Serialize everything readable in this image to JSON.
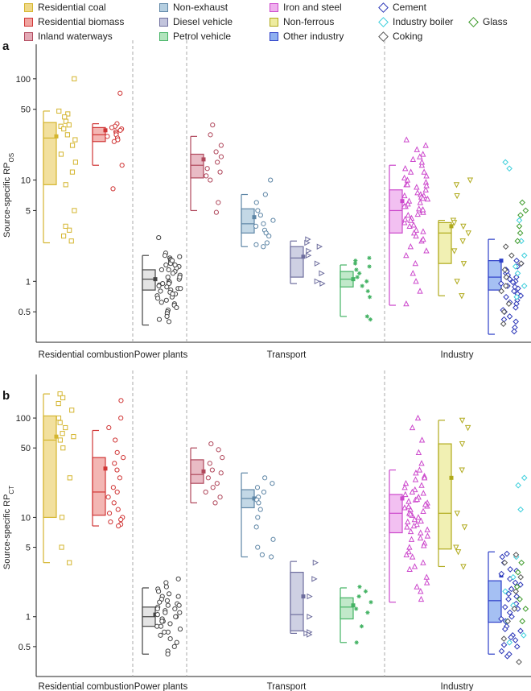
{
  "legend": [
    {
      "label": "Residential coal",
      "color": "#d4b52e",
      "fill": "#efd886",
      "shape": "square"
    },
    {
      "label": "Residential biomass",
      "color": "#d03535",
      "fill": "#f0a4a0",
      "shape": "square"
    },
    {
      "label": "Inland waterways",
      "color": "#b0485c",
      "fill": "#e3aab6",
      "shape": "square"
    },
    {
      "label": "Non-exhaust",
      "color": "#5e86a6",
      "fill": "#b4cee0",
      "shape": "square"
    },
    {
      "label": "Diesel vehicle",
      "color": "#6e6e9e",
      "fill": "#c2c4dc",
      "shape": "square"
    },
    {
      "label": "Petrol vehicle",
      "color": "#44b364",
      "fill": "#b2e4bd",
      "shape": "square"
    },
    {
      "label": "Iron and steel",
      "color": "#cc48cc",
      "fill": "#efb0ee",
      "shape": "square"
    },
    {
      "label": "Non-ferrous",
      "color": "#b0aa1c",
      "fill": "#eeeca0",
      "shape": "square"
    },
    {
      "label": "Other industry",
      "color": "#2d3fc8",
      "fill": "#8fb0f0",
      "shape": "square"
    },
    {
      "label": "Cement",
      "color": "#2b36b8",
      "shape": "diamond"
    },
    {
      "label": "Industry boiler",
      "color": "#3ccfdc",
      "shape": "diamond"
    },
    {
      "label": "Coking",
      "color": "#555555",
      "shape": "diamond"
    },
    {
      "label": "Glass",
      "color": "#3c9a2a",
      "shape": "diamond"
    }
  ],
  "chart_data": [
    {
      "panel": "a",
      "type": "box",
      "ylabel": "Source-specific RP",
      "ylabel_sub": "OS",
      "yscale": "log",
      "ylim": [
        0.25,
        200
      ],
      "yticks": [
        0.5,
        1,
        5,
        10,
        50,
        100
      ],
      "groups": [
        "Residential combustion",
        "Power plants",
        "Transport",
        "Industry"
      ],
      "series": [
        {
          "name": "Residential coal",
          "box": [
            9,
            26,
            37
          ],
          "whisker": [
            2.4,
            48
          ],
          "mean": 27,
          "points": [
            100,
            48,
            45,
            42,
            38,
            35,
            34,
            32,
            28,
            25,
            22,
            18,
            15,
            12,
            9,
            5,
            3.5,
            3.2,
            2.8,
            2.5
          ]
        },
        {
          "name": "Residential biomass",
          "box": [
            24,
            28,
            33
          ],
          "whisker": [
            14,
            36
          ],
          "mean": 31,
          "points": [
            72,
            36,
            34,
            33,
            32,
            31,
            30,
            29,
            28,
            27,
            26,
            25,
            24,
            14,
            8.2
          ]
        },
        {
          "name": "Power plants",
          "box": [
            0.82,
            1.05,
            1.3
          ],
          "whisker": [
            0.37,
            1.8
          ],
          "mean": 1.05,
          "points": [
            2.7,
            1.9,
            1.8,
            1.75,
            1.7,
            1.65,
            1.6,
            1.55,
            1.5,
            1.45,
            1.4,
            1.35,
            1.3,
            1.25,
            1.2,
            1.15,
            1.1,
            1.05,
            1.0,
            0.98,
            0.95,
            0.92,
            0.9,
            0.88,
            0.85,
            0.82,
            0.8,
            0.78,
            0.75,
            0.72,
            0.7,
            0.68,
            0.65,
            0.62,
            0.6,
            0.58,
            0.55,
            0.52,
            0.5,
            0.48,
            0.45,
            0.42,
            0.4,
            1.3,
            1.1,
            0.95,
            0.85,
            0.75,
            1.45,
            1.6
          ]
        },
        {
          "name": "Inland waterways",
          "box": [
            10.5,
            14,
            18
          ],
          "whisker": [
            5,
            27
          ],
          "mean": 16,
          "points": [
            35,
            28,
            22,
            19,
            17,
            15,
            13,
            12,
            11,
            10,
            6,
            4.8
          ]
        },
        {
          "name": "Non-exhaust",
          "box": [
            3.0,
            3.7,
            5.2
          ],
          "whisker": [
            2.2,
            7.2
          ],
          "mean": 4.3,
          "points": [
            10,
            7.2,
            6,
            5,
            4.5,
            4,
            3.7,
            3.5,
            3.2,
            3,
            2.8,
            2.4,
            2.3,
            2.2
          ]
        },
        {
          "name": "Diesel vehicle",
          "box": [
            1.1,
            1.7,
            2.2
          ],
          "whisker": [
            0.95,
            2.5
          ],
          "mean": 1.75,
          "points": [
            2.6,
            2.4,
            2.2,
            2,
            1.8,
            1.5,
            1.2,
            1.0,
            0.95
          ]
        },
        {
          "name": "Petrol vehicle",
          "box": [
            0.88,
            1.05,
            1.25
          ],
          "whisker": [
            0.45,
            1.45
          ],
          "mean": 1.05,
          "points": [
            1.7,
            1.6,
            1.5,
            1.4,
            1.3,
            1.2,
            1.1,
            1.0,
            0.9,
            0.8,
            0.7,
            0.45,
            0.42
          ]
        },
        {
          "name": "Iron and steel",
          "box": [
            3.0,
            5,
            8
          ],
          "whisker": [
            0.58,
            14
          ],
          "mean": 6.2,
          "points": [
            25,
            22,
            20,
            18,
            16,
            14,
            13,
            12,
            11,
            10,
            9.5,
            9,
            8.5,
            8,
            7.5,
            7.2,
            7,
            6.8,
            6.5,
            6.2,
            6,
            5.8,
            5.5,
            5.2,
            5,
            4.8,
            4.5,
            4.2,
            4,
            3.8,
            3.5,
            3.2,
            3,
            2.8,
            2.5,
            2.2,
            2,
            1.8,
            1.5,
            1.2,
            1.0,
            0.8,
            0.6,
            12,
            9,
            7,
            5.5,
            4.6,
            3.6,
            2.6,
            6.6,
            5.1,
            4.1,
            3.1,
            8.8,
            10.5,
            15,
            17
          ]
        },
        {
          "name": "Non-ferrous",
          "box": [
            1.5,
            3.0,
            3.8
          ],
          "whisker": [
            0.72,
            4.0
          ],
          "mean": 3.5,
          "points": [
            10,
            9,
            7,
            4,
            3.8,
            3.5,
            3.0,
            2.5,
            2.0,
            1.5,
            1.0,
            0.72
          ]
        },
        {
          "name": "Other industry",
          "box": [
            0.82,
            1.1,
            1.6
          ],
          "whisker": [
            0.3,
            2.6
          ],
          "mean": 1.6,
          "points": []
        },
        {
          "name": "Cement",
          "points": [
            1.6,
            1.5,
            1.4,
            1.3,
            1.2,
            1.1,
            1.05,
            1.0,
            0.95,
            0.9,
            0.85,
            0.8,
            0.75,
            0.7,
            0.65,
            0.6,
            0.55,
            0.5,
            0.45,
            0.4,
            0.35,
            1.25,
            1.15,
            0.98,
            0.88,
            0.72,
            0.62,
            0.52,
            0.42,
            0.32
          ]
        },
        {
          "name": "Industry boiler",
          "points": [
            15,
            13,
            4,
            2.5,
            1.8,
            1.4,
            1.2,
            0.9,
            0.7
          ]
        },
        {
          "name": "Coking",
          "points": [
            2.2,
            1.8,
            1.5,
            1.3,
            1.1,
            0.9,
            0.8,
            0.6,
            0.5,
            0.38
          ]
        },
        {
          "name": "Glass",
          "points": [
            6,
            5,
            4.5,
            3.5,
            3,
            2.5
          ]
        }
      ]
    },
    {
      "panel": "b",
      "type": "box",
      "ylabel": "Source-specific RP",
      "ylabel_sub": "CT",
      "yscale": "log",
      "ylim": [
        0.25,
        250
      ],
      "yticks": [
        0.5,
        1,
        5,
        10,
        50,
        100
      ],
      "groups": [
        "Residential combustion",
        "Power plants",
        "Transport",
        "Industry"
      ],
      "series": [
        {
          "name": "Residential coal",
          "box": [
            10,
            60,
            105
          ],
          "whisker": [
            3.5,
            175
          ],
          "mean": 65,
          "points": [
            175,
            160,
            140,
            120,
            100,
            90,
            80,
            70,
            65,
            60,
            50,
            25,
            10,
            5,
            3.5
          ]
        },
        {
          "name": "Residential biomass",
          "box": [
            10.5,
            18,
            40
          ],
          "whisker": [
            8.2,
            75
          ],
          "mean": 31,
          "points": [
            150,
            100,
            80,
            60,
            45,
            40,
            35,
            30,
            25,
            20,
            18,
            16,
            14,
            12,
            11,
            10,
            9.5,
            9,
            8.5,
            8.2
          ]
        },
        {
          "name": "Power plants",
          "box": [
            0.8,
            1.0,
            1.25
          ],
          "whisker": [
            0.42,
            1.95
          ],
          "mean": 1.05,
          "points": [
            2.4,
            2.2,
            2.0,
            1.9,
            1.8,
            1.7,
            1.6,
            1.5,
            1.45,
            1.4,
            1.35,
            1.3,
            1.25,
            1.2,
            1.15,
            1.1,
            1.05,
            1.0,
            0.95,
            0.9,
            0.85,
            0.8,
            0.75,
            0.7,
            0.65,
            0.6,
            0.55,
            0.5,
            0.45,
            0.42,
            1.3,
            1.1,
            0.9,
            0.7,
            1.6,
            0.8,
            1.0,
            1.2
          ]
        },
        {
          "name": "Inland waterways",
          "box": [
            22,
            27,
            38
          ],
          "whisker": [
            14,
            50
          ],
          "mean": 29,
          "points": [
            55,
            48,
            40,
            35,
            30,
            28,
            25,
            22,
            20,
            18,
            16,
            14
          ]
        },
        {
          "name": "Non-exhaust",
          "box": [
            12.5,
            15.5,
            19
          ],
          "whisker": [
            4,
            28
          ],
          "mean": 15.5,
          "points": [
            25,
            22,
            20,
            18,
            16,
            15,
            14,
            12,
            10,
            8,
            6,
            5,
            4.2,
            4
          ]
        },
        {
          "name": "Diesel vehicle",
          "box": [
            0.72,
            1.05,
            2.8
          ],
          "whisker": [
            0.68,
            3.6
          ],
          "mean": 1.6,
          "points": [
            3.5,
            2.4,
            1.6,
            1.0,
            0.7,
            0.68,
            0.66
          ]
        },
        {
          "name": "Petrol vehicle",
          "box": [
            0.95,
            1.25,
            1.55
          ],
          "whisker": [
            0.55,
            1.95
          ],
          "mean": 1.3,
          "points": [
            2.0,
            1.8,
            1.6,
            1.4,
            1.2,
            1.1,
            0.8,
            0.55
          ]
        },
        {
          "name": "Iron and steel",
          "box": [
            7,
            11,
            17
          ],
          "whisker": [
            1.4,
            30
          ],
          "mean": 15.5,
          "points": [
            100,
            80,
            60,
            45,
            35,
            30,
            28,
            26,
            24,
            22,
            20,
            19,
            18,
            17,
            16,
            15,
            14,
            13,
            12.5,
            12,
            11.5,
            11,
            10.5,
            10,
            9.5,
            9,
            8.5,
            8,
            7.5,
            7,
            6.5,
            6,
            5.5,
            5,
            4.5,
            4,
            3.5,
            3,
            2.5,
            2,
            1.5,
            14.5,
            13.5,
            10.8,
            9.2,
            8.2,
            7.2,
            6.2,
            5.2,
            4.2,
            3.2,
            2.2,
            1.8,
            25,
            21,
            17.5,
            15.2,
            12.8
          ]
        },
        {
          "name": "Non-ferrous",
          "box": [
            4.8,
            11,
            55
          ],
          "whisker": [
            3.2,
            95
          ],
          "mean": 25,
          "points": [
            95,
            80,
            55,
            30,
            11,
            8,
            5,
            4.5,
            3.2
          ]
        },
        {
          "name": "Other industry",
          "box": [
            0.88,
            1.45,
            2.3
          ],
          "whisker": [
            0.42,
            4.5
          ],
          "mean": 2.6,
          "points": []
        },
        {
          "name": "Cement",
          "points": [
            4.3,
            4.0,
            3.5,
            3.0,
            2.7,
            2.4,
            2.1,
            1.9,
            1.7,
            1.5,
            1.35,
            1.2,
            1.1,
            1.0,
            0.9,
            0.8,
            0.72,
            0.65,
            0.58,
            0.5,
            0.45,
            0.4,
            2.9,
            2.2,
            1.6,
            1.25,
            0.95,
            0.75,
            0.62,
            0.52,
            0.42
          ]
        },
        {
          "name": "Industry boiler",
          "points": [
            25,
            21,
            12,
            4,
            2.5,
            1.8,
            1.3,
            0.9,
            0.65,
            0.55
          ]
        },
        {
          "name": "Coking",
          "points": [
            4.2,
            3.5,
            2.5,
            1.8,
            1.2,
            0.9,
            0.6,
            0.35
          ]
        },
        {
          "name": "Glass",
          "points": [
            3.5,
            2.8,
            2.0,
            1.5,
            1.2,
            0.9
          ]
        }
      ]
    }
  ]
}
